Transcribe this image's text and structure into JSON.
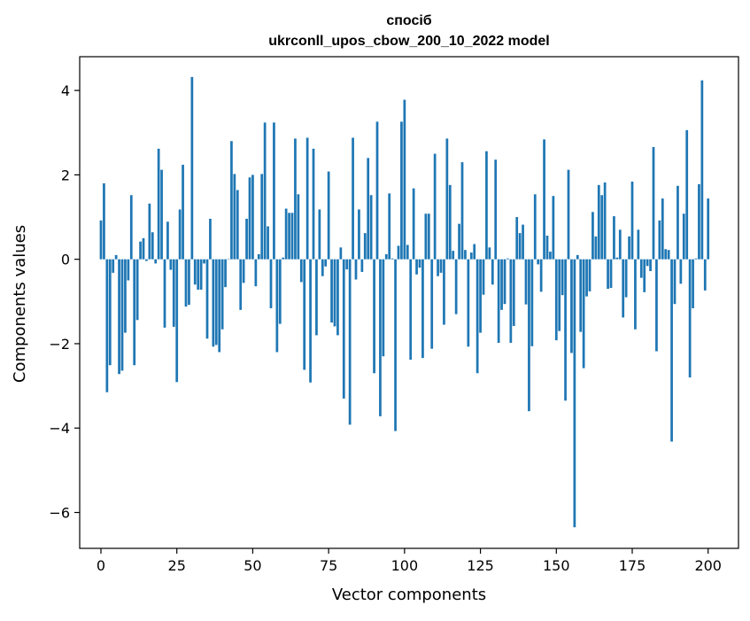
{
  "chart_data": {
    "type": "bar",
    "title_line1": "спосіб",
    "title_line2": "ukrconll_upos_cbow_200_10_2022 model",
    "xlabel": "Vector components",
    "ylabel": "Components values",
    "xlim": [
      -7,
      210
    ],
    "ylim": [
      -6.85,
      4.8
    ],
    "xticks": [
      0,
      25,
      50,
      75,
      100,
      125,
      150,
      175,
      200
    ],
    "xtick_labels": [
      "0",
      "25",
      "50",
      "75",
      "100",
      "125",
      "150",
      "175",
      "200"
    ],
    "yticks": [
      -6,
      -4,
      -2,
      0,
      2,
      4
    ],
    "ytick_labels": [
      "−6",
      "−4",
      "−2",
      "0",
      "2",
      "4"
    ],
    "grid": false,
    "bar_color": "#1f77b4",
    "x_start": 0,
    "values": [
      0.92,
      1.8,
      -3.15,
      -2.51,
      -0.32,
      0.1,
      -2.72,
      -2.64,
      -1.74,
      -0.5,
      1.52,
      -2.51,
      -1.44,
      0.42,
      0.5,
      -0.04,
      1.32,
      0.64,
      -0.1,
      2.62,
      2.12,
      -1.62,
      0.89,
      -0.25,
      -1.6,
      -2.91,
      1.18,
      2.24,
      -1.12,
      -1.08,
      4.32,
      -0.6,
      -0.72,
      -0.72,
      -0.1,
      -1.88,
      0.96,
      -2.07,
      -2.03,
      -2.2,
      -1.66,
      -0.66,
      0.01,
      2.8,
      2.02,
      1.64,
      -1.2,
      -0.56,
      0.96,
      1.94,
      2.0,
      -0.64,
      0.12,
      2.02,
      3.24,
      0.78,
      -1.16,
      3.24,
      -2.2,
      -1.53,
      0.04,
      1.2,
      1.1,
      1.1,
      2.86,
      1.54,
      -0.54,
      -2.62,
      2.88,
      -2.92,
      2.62,
      -1.8,
      1.18,
      -0.4,
      -0.17,
      2.08,
      -1.5,
      -1.59,
      -1.8,
      0.28,
      -3.3,
      -0.24,
      -3.92,
      2.88,
      -0.48,
      1.18,
      -0.3,
      0.62,
      2.4,
      1.52,
      -2.7,
      3.26,
      -3.72,
      -2.3,
      0.12,
      1.56,
      0.02,
      -4.07,
      0.32,
      3.26,
      3.78,
      0.34,
      -2.38,
      1.68,
      -0.36,
      -0.2,
      -2.34,
      1.08,
      1.08,
      -2.12,
      2.5,
      -0.4,
      -0.32,
      -1.55,
      2.86,
      1.76,
      0.2,
      -1.3,
      0.84,
      2.3,
      0.22,
      -2.07,
      0.16,
      0.36,
      -2.7,
      -1.74,
      -0.84,
      2.56,
      0.28,
      -0.6,
      2.36,
      -1.98,
      -1.2,
      -1.06,
      0.02,
      -1.98,
      -1.58,
      1.0,
      0.62,
      0.82,
      -1.07,
      -3.6,
      -2.06,
      1.54,
      -0.12,
      -0.77,
      2.84,
      0.56,
      0.18,
      1.5,
      -1.92,
      -1.7,
      -0.85,
      -3.35,
      2.12,
      -2.22,
      -6.35,
      0.1,
      -1.72,
      -2.58,
      -0.88,
      -0.76,
      1.12,
      0.54,
      1.76,
      1.52,
      1.82,
      -0.7,
      -0.68,
      1.02,
      0.04,
      0.7,
      -1.38,
      -0.9,
      0.54,
      1.84,
      -1.66,
      0.7,
      -0.44,
      -0.78,
      -0.16,
      -0.28,
      2.66,
      -2.18,
      0.92,
      1.44,
      0.24,
      0.22,
      -4.32,
      -1.06,
      1.74,
      -0.58,
      1.08,
      3.06,
      -2.8,
      -1.16,
      0.02,
      1.78,
      4.24,
      -0.74,
      1.44
    ]
  }
}
